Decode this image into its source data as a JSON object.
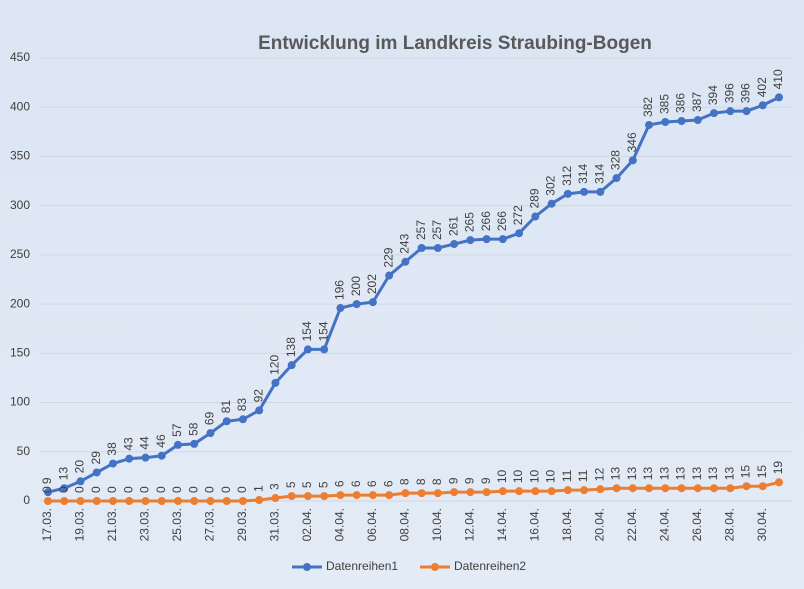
{
  "chart_data": {
    "type": "line",
    "title": "Entwicklung im Landkreis Straubing-Bogen",
    "categories": [
      "17.03.",
      null,
      "19.03.",
      null,
      "21.03.",
      null,
      "23.03.",
      null,
      "25.03.",
      null,
      "27.03.",
      null,
      "29.03.",
      null,
      "31.03.",
      null,
      "02.04.",
      null,
      "04.04.",
      null,
      "06.04.",
      null,
      "08.04.",
      null,
      "10.04.",
      null,
      "12.04.",
      null,
      "14.04.",
      null,
      "16.04.",
      null,
      "18.04.",
      null,
      "20.04.",
      null,
      "22.04.",
      null,
      "24.04.",
      null,
      "26.04.",
      null,
      "28.04.",
      null,
      "30.04.",
      null
    ],
    "series": [
      {
        "name": "Datenreihen1",
        "color": "#4472c4",
        "values": [
          9,
          13,
          20,
          29,
          38,
          43,
          44,
          46,
          57,
          58,
          69,
          81,
          83,
          92,
          120,
          138,
          154,
          154,
          196,
          200,
          202,
          229,
          243,
          257,
          257,
          261,
          265,
          266,
          266,
          272,
          289,
          302,
          312,
          314,
          314,
          328,
          346,
          382,
          385,
          386,
          387,
          394,
          396,
          396,
          402,
          410
        ]
      },
      {
        "name": "Datenreihen2",
        "color": "#ed7d31",
        "values": [
          0,
          0,
          0,
          0,
          0,
          0,
          0,
          0,
          0,
          0,
          0,
          0,
          0,
          1,
          3,
          5,
          5,
          5,
          6,
          6,
          6,
          6,
          8,
          8,
          8,
          9,
          9,
          9,
          10,
          10,
          10,
          10,
          11,
          11,
          12,
          13,
          13,
          13,
          13,
          13,
          13,
          13,
          13,
          15,
          15,
          19
        ]
      }
    ],
    "ylim": [
      0,
      450
    ],
    "yticks": [
      0,
      50,
      100,
      150,
      200,
      250,
      300,
      350,
      400,
      450
    ],
    "grid": true,
    "legend": "bottom"
  }
}
